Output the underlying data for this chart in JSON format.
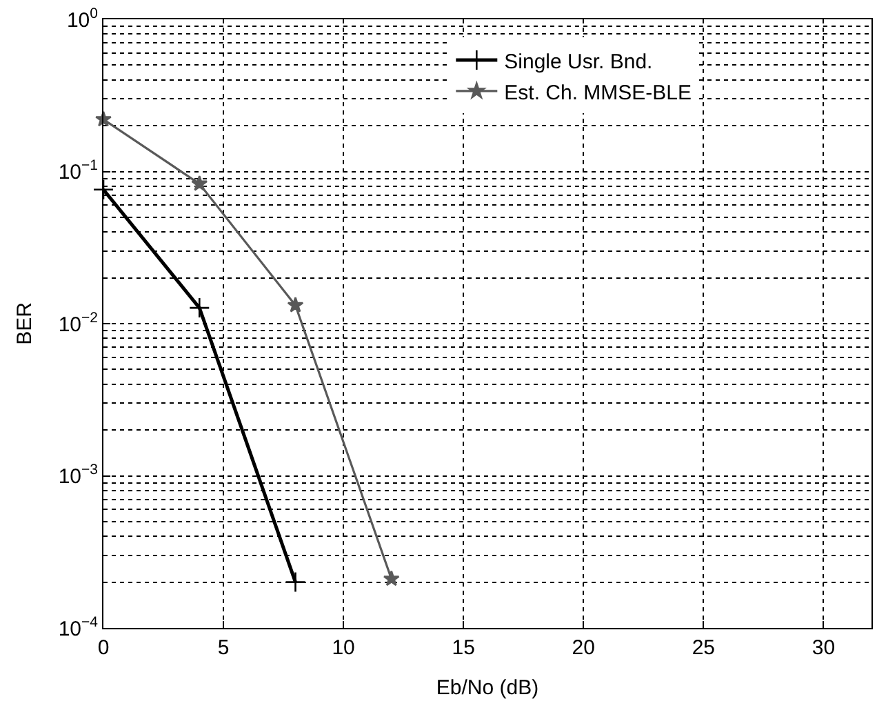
{
  "chart_data": {
    "type": "line",
    "xlabel": "Eb/No (dB)",
    "ylabel": "BER",
    "log": "y",
    "xlim": [
      0,
      32
    ],
    "xticks": [
      0,
      5,
      10,
      15,
      20,
      25,
      30
    ],
    "ylim": [
      0.0001,
      1
    ],
    "yticks": [
      {
        "value": 1,
        "label": "10$^{0}$"
      },
      {
        "value": 0.1,
        "label": "10$^{−1}$"
      },
      {
        "value": 0.01,
        "label": "10$^{−2}$"
      },
      {
        "value": 0.001,
        "label": "10$^{−3}$"
      },
      {
        "value": 0.0001,
        "label": "10$^{−4}$"
      }
    ],
    "grid": true,
    "legend": "top right",
    "series": [
      {
        "name": "Single Usr. Bnd.",
        "color": "#000000",
        "marker": "cross",
        "x": [
          0,
          4,
          8
        ],
        "values": [
          0.076,
          0.0127,
          0.0002
        ]
      },
      {
        "name": "Est. Ch. MMSE-BLE",
        "color": "#595959",
        "marker": "star",
        "x": [
          0,
          4,
          8,
          12
        ],
        "values": [
          0.22,
          0.083,
          0.0132,
          0.00021
        ]
      }
    ]
  }
}
